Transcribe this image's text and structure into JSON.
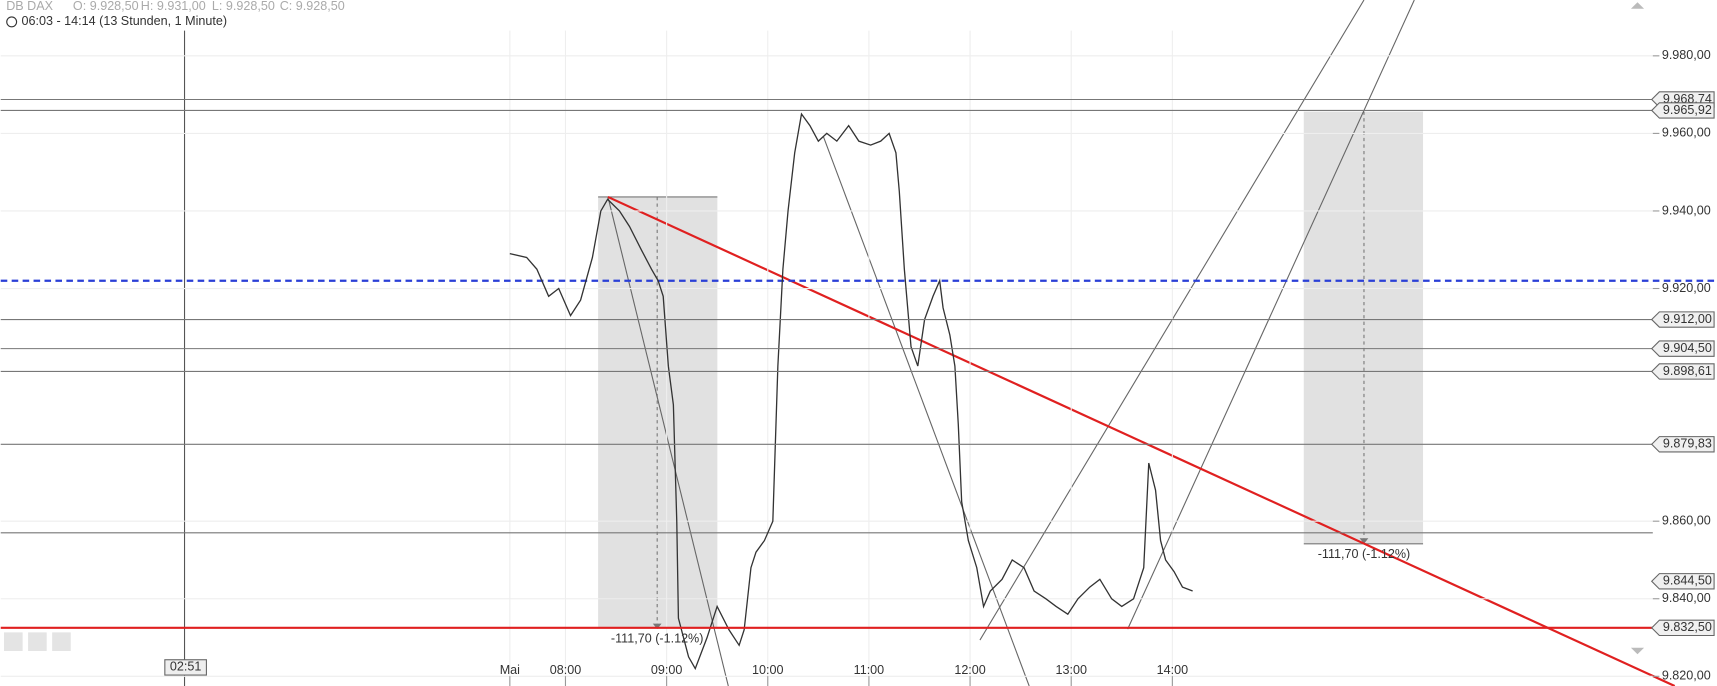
{
  "chart_data": {
    "type": "line",
    "title": "DB DAX",
    "ohlc_labels": [
      "O: 9.928,50",
      "H: 9.931,00",
      "L: 9.928,50",
      "C: 9.928,50"
    ],
    "subtitle": "06:03 - 14:14 (13 Stunden, 1 Minute)",
    "crosshair_label": "02:51",
    "annotations": [
      "-111,70 (-1.12%)",
      "-111,70 (-1.12%)"
    ],
    "xlim": [
      145,
      1125
    ],
    "xticks": [
      {
        "value": 447,
        "label": "Mai"
      },
      {
        "value": 480,
        "label": "08:00"
      },
      {
        "value": 540,
        "label": "09:00"
      },
      {
        "value": 600,
        "label": "10:00"
      },
      {
        "value": 660,
        "label": "11:00"
      },
      {
        "value": 720,
        "label": "12:00"
      },
      {
        "value": 780,
        "label": "13:00"
      },
      {
        "value": 840,
        "label": "14:00"
      }
    ],
    "ylim": [
      9817.5,
      9994.4
    ],
    "yticks": [
      {
        "value": 9820,
        "label": "9.820,00"
      },
      {
        "value": 9840,
        "label": "9.840,00"
      },
      {
        "value": 9860,
        "label": "9.860,00"
      },
      {
        "value": 9920,
        "label": "9.920,00"
      },
      {
        "value": 9940,
        "label": "9.940,00"
      },
      {
        "value": 9960,
        "label": "9.960,00"
      },
      {
        "value": 9980,
        "label": "9.980,00"
      }
    ],
    "grid": true,
    "levels": [
      {
        "value": 9968.74,
        "label": "9.968,74",
        "color": "#777777"
      },
      {
        "value": 9965.92,
        "label": "9.965,92",
        "color": "#777777"
      },
      {
        "value": 9912.0,
        "label": "9.912,00",
        "color": "#777777"
      },
      {
        "value": 9904.5,
        "label": "9.904,50",
        "color": "#777777"
      },
      {
        "value": 9898.61,
        "label": "9.898,61",
        "color": "#777777"
      },
      {
        "value": 9879.83,
        "label": "9.879,83",
        "color": "#777777"
      },
      {
        "value": 9844.5,
        "label": "9.844,50",
        "color": "none"
      },
      {
        "value": 9832.5,
        "label": "9.832,50",
        "color": "#e02020"
      }
    ],
    "unlabeled_levels": [
      9857
    ],
    "reference_line": {
      "value": 9922,
      "color": "#2a3fd6"
    },
    "series": [
      {
        "name": "DB DAX",
        "color": "#333333",
        "x": [
          447,
          457,
          463,
          470,
          476,
          483,
          489,
          496,
          501,
          505,
          512,
          518,
          525,
          531,
          535,
          538,
          541,
          544,
          546,
          547,
          553,
          557,
          564,
          570,
          577,
          583,
          586,
          590,
          593,
          598,
          603,
          606,
          609,
          612,
          616,
          620,
          625,
          630,
          635,
          641,
          648,
          654,
          661,
          667,
          672,
          676,
          678,
          681,
          685,
          689,
          693,
          698,
          702,
          704,
          708,
          711,
          713,
          715,
          719,
          724,
          728,
          732,
          739,
          745,
          752,
          758,
          765,
          771,
          778,
          784,
          791,
          797,
          804,
          810,
          817,
          823,
          826,
          830,
          833,
          836,
          841,
          846,
          852
        ],
        "values": [
          9929,
          9928,
          9925,
          9918,
          9920,
          9913,
          9917,
          9928,
          9940,
          9943,
          9940,
          9936,
          9930,
          9925,
          9922,
          9918,
          9900,
          9890,
          9860,
          9835,
          9825,
          9822,
          9830,
          9838,
          9832,
          9828,
          9832,
          9848,
          9852,
          9855,
          9860,
          9900,
          9925,
          9940,
          9955,
          9965,
          9962,
          9958,
          9960,
          9958,
          9962,
          9958,
          9957,
          9958,
          9960,
          9955,
          9945,
          9925,
          9905,
          9900,
          9912,
          9918,
          9922,
          9915,
          9908,
          9900,
          9885,
          9865,
          9855,
          9848,
          9838,
          9842,
          9845,
          9850,
          9848,
          9842,
          9840,
          9838,
          9836,
          9840,
          9843,
          9845,
          9840,
          9838,
          9840,
          9848,
          9875,
          9868,
          9855,
          9850,
          9847,
          9843,
          9842
        ]
      }
    ]
  }
}
